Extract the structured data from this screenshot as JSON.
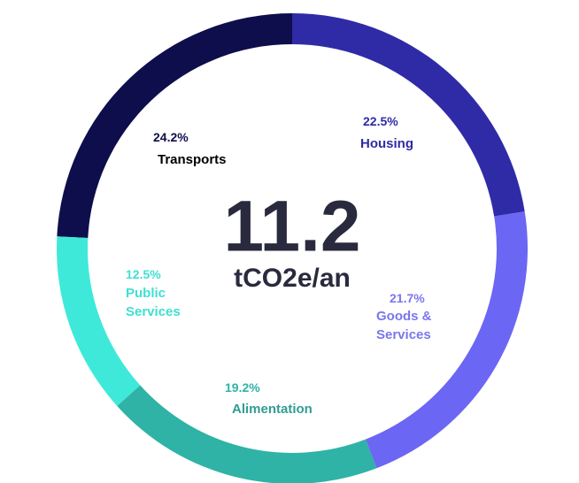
{
  "chart_data": {
    "type": "donut",
    "categories": [
      "Housing",
      "Goods & Services",
      "Alimentation",
      "Public Services",
      "Transports"
    ],
    "values": [
      22.5,
      21.7,
      19.2,
      12.5,
      24.2
    ],
    "value_labels": [
      "22.5%",
      "21.7%",
      "19.2%",
      "12.5%",
      "24.2%"
    ],
    "colors": [
      "#2f2ba6",
      "#6c66f4",
      "#2fb3a6",
      "#3fe9da",
      "#0e0e4c"
    ],
    "center_value": 11.2,
    "center_unit": "tCO2e/an"
  }
}
